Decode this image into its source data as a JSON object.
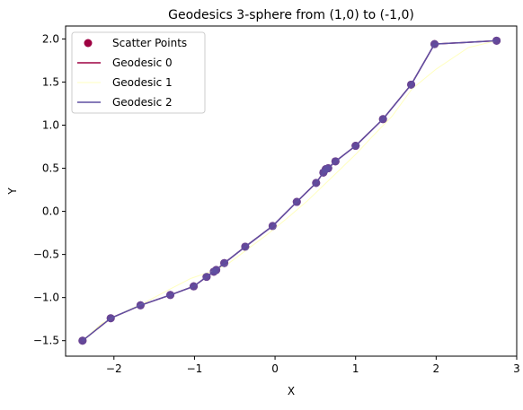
{
  "chart_data": {
    "type": "line",
    "title": "Geodesics 3-sphere from (1,0) to (-1,0)",
    "xlabel": "X",
    "ylabel": "Y",
    "xlim": [
      -2.6,
      3.0
    ],
    "ylim": [
      -1.68,
      2.15
    ],
    "xticks": [
      -2,
      -1,
      0,
      1,
      2,
      3
    ],
    "yticks": [
      -1.5,
      -1.0,
      -0.5,
      0.0,
      0.5,
      1.0,
      1.5,
      2.0
    ],
    "xtick_labels": [
      "−2",
      "−1",
      "0",
      "1",
      "2",
      "3"
    ],
    "ytick_labels": [
      "−1.5",
      "−1.0",
      "−0.5",
      "0.0",
      "0.5",
      "1.0",
      "1.5",
      "2.0"
    ],
    "legend_position": "upper-left",
    "scatter": {
      "name": "Scatter Points",
      "color": "#9e0142",
      "points": [
        [
          -2.39,
          -1.5
        ],
        [
          -2.04,
          -1.24
        ],
        [
          -1.67,
          -1.09
        ],
        [
          -1.3,
          -0.97
        ],
        [
          -1.01,
          -0.87
        ],
        [
          -0.85,
          -0.76
        ],
        [
          -0.76,
          -0.7
        ],
        [
          -0.73,
          -0.68
        ],
        [
          -0.63,
          -0.6
        ],
        [
          -0.37,
          -0.41
        ],
        [
          -0.03,
          -0.17
        ],
        [
          0.27,
          0.11
        ],
        [
          0.51,
          0.33
        ],
        [
          0.6,
          0.45
        ],
        [
          0.63,
          0.49
        ],
        [
          0.66,
          0.5
        ],
        [
          0.75,
          0.58
        ],
        [
          1.0,
          0.76
        ],
        [
          1.34,
          1.07
        ],
        [
          1.69,
          1.47
        ],
        [
          1.98,
          1.94
        ],
        [
          2.75,
          1.98
        ]
      ]
    },
    "series": [
      {
        "name": "Geodesic 0",
        "color": "#9e0142",
        "width": 1.5,
        "x": [
          -2.39,
          -2.04,
          -1.67,
          -1.3,
          -1.01,
          -0.85,
          -0.76,
          -0.73,
          -0.63,
          -0.37,
          -0.03,
          0.27,
          0.51,
          0.6,
          0.63,
          0.66,
          0.75,
          1.0,
          1.34,
          1.69,
          1.98,
          2.75
        ],
        "y": [
          -1.5,
          -1.24,
          -1.09,
          -0.97,
          -0.87,
          -0.76,
          -0.7,
          -0.68,
          -0.6,
          -0.41,
          -0.17,
          0.11,
          0.33,
          0.45,
          0.49,
          0.5,
          0.58,
          0.76,
          1.07,
          1.47,
          1.94,
          1.98
        ]
      },
      {
        "name": "Geodesic 1",
        "color": "#ffffbf",
        "width": 1.0,
        "x": [
          -2.39,
          -2.15,
          -1.9,
          -1.6,
          -1.3,
          -1.05,
          -0.8,
          -0.6,
          -0.4,
          -0.1,
          0.15,
          0.4,
          0.6,
          0.8,
          1.0,
          1.2,
          1.45,
          1.7,
          2.0,
          2.4,
          2.75
        ],
        "y": [
          -1.5,
          -1.3,
          -1.18,
          -1.05,
          -0.9,
          -0.78,
          -0.7,
          -0.62,
          -0.48,
          -0.27,
          -0.08,
          0.12,
          0.3,
          0.48,
          0.66,
          0.86,
          1.1,
          1.42,
          1.65,
          1.9,
          1.98
        ]
      },
      {
        "name": "Geodesic 2",
        "color": "#5e4fa2",
        "width": 1.5,
        "x": [
          -2.39,
          -2.04,
          -1.67,
          -1.3,
          -1.01,
          -0.85,
          -0.76,
          -0.73,
          -0.63,
          -0.37,
          -0.03,
          0.27,
          0.51,
          0.6,
          0.63,
          0.66,
          0.75,
          1.0,
          1.34,
          1.69,
          1.98,
          2.75
        ],
        "y": [
          -1.5,
          -1.24,
          -1.09,
          -0.97,
          -0.87,
          -0.76,
          -0.7,
          -0.68,
          -0.6,
          -0.41,
          -0.17,
          0.11,
          0.33,
          0.45,
          0.49,
          0.5,
          0.58,
          0.76,
          1.07,
          1.47,
          1.94,
          1.98
        ]
      }
    ]
  }
}
